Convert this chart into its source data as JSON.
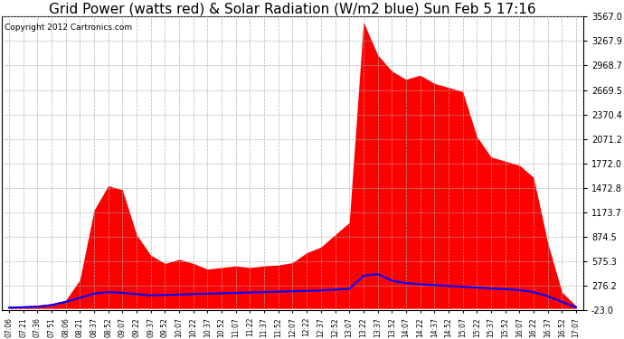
{
  "title": "Grid Power (watts red) & Solar Radiation (W/m2 blue) Sun Feb 5 17:16",
  "copyright": "Copyright 2012 Cartronics.com",
  "yticks": [
    -23.0,
    276.2,
    575.3,
    874.5,
    1173.7,
    1472.8,
    1772.0,
    2071.2,
    2370.4,
    2669.5,
    2968.7,
    3267.9,
    3567.0
  ],
  "ymin": -23.0,
  "ymax": 3567.0,
  "xtick_labels": [
    "07:06",
    "07:21",
    "07:36",
    "07:51",
    "08:06",
    "08:21",
    "08:37",
    "08:52",
    "09:07",
    "09:22",
    "09:37",
    "09:52",
    "10:07",
    "10:22",
    "10:37",
    "10:52",
    "11:07",
    "11:22",
    "11:37",
    "11:52",
    "12:07",
    "12:22",
    "12:37",
    "12:52",
    "13:07",
    "13:22",
    "13:37",
    "13:52",
    "14:07",
    "14:22",
    "14:37",
    "14:52",
    "15:07",
    "15:22",
    "15:37",
    "15:52",
    "16:07",
    "16:22",
    "16:37",
    "16:52",
    "17:07"
  ],
  "bg_color": "#ffffff",
  "red_color": "#ff0000",
  "blue_color": "#0000ff",
  "grid_color": "#aaaaaa",
  "title_fontsize": 11,
  "copyright_fontsize": 6.5,
  "red_data": [
    20,
    30,
    40,
    60,
    100,
    350,
    1200,
    1500,
    1450,
    900,
    650,
    550,
    600,
    550,
    480,
    500,
    520,
    500,
    520,
    530,
    560,
    680,
    750,
    900,
    1050,
    3500,
    3100,
    2900,
    2800,
    2850,
    2750,
    2700,
    2650,
    2100,
    1850,
    1800,
    1750,
    1600,
    800,
    200,
    30
  ],
  "blue_data": [
    10,
    15,
    20,
    40,
    80,
    130,
    180,
    200,
    190,
    175,
    160,
    165,
    170,
    175,
    180,
    185,
    190,
    195,
    200,
    205,
    210,
    215,
    220,
    230,
    240,
    400,
    420,
    340,
    310,
    295,
    285,
    275,
    265,
    255,
    245,
    235,
    225,
    200,
    150,
    80,
    15
  ]
}
